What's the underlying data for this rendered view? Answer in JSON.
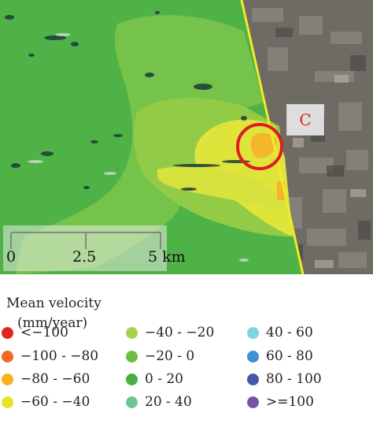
{
  "map": {
    "site_label": "C",
    "scale_bar": {
      "labels": [
        "0",
        "2.5",
        "5 km"
      ]
    }
  },
  "legend": {
    "title_line1": "Mean velocity",
    "title_line2": "(mm/year)",
    "items": [
      {
        "label": "<−100",
        "color": "#e3241b"
      },
      {
        "label": "−100 - −80",
        "color": "#f26a21"
      },
      {
        "label": "−80 - −60",
        "color": "#f9b21c"
      },
      {
        "label": "−60 - −40",
        "color": "#e1e52b"
      },
      {
        "label": "−40 - −20",
        "color": "#a8d24b"
      },
      {
        "label": "−20 - 0",
        "color": "#70bd46"
      },
      {
        "label": "0 - 20",
        "color": "#4caf44"
      },
      {
        "label": "20 - 40",
        "color": "#6fc59a"
      },
      {
        "label": "40 - 60",
        "color": "#7fd3e0"
      },
      {
        "label": "60 - 80",
        "color": "#3d8fd6"
      },
      {
        "label": "80 - 100",
        "color": "#4657a8"
      },
      {
        "label": ">=100",
        "color": "#7a52a6"
      }
    ]
  }
}
